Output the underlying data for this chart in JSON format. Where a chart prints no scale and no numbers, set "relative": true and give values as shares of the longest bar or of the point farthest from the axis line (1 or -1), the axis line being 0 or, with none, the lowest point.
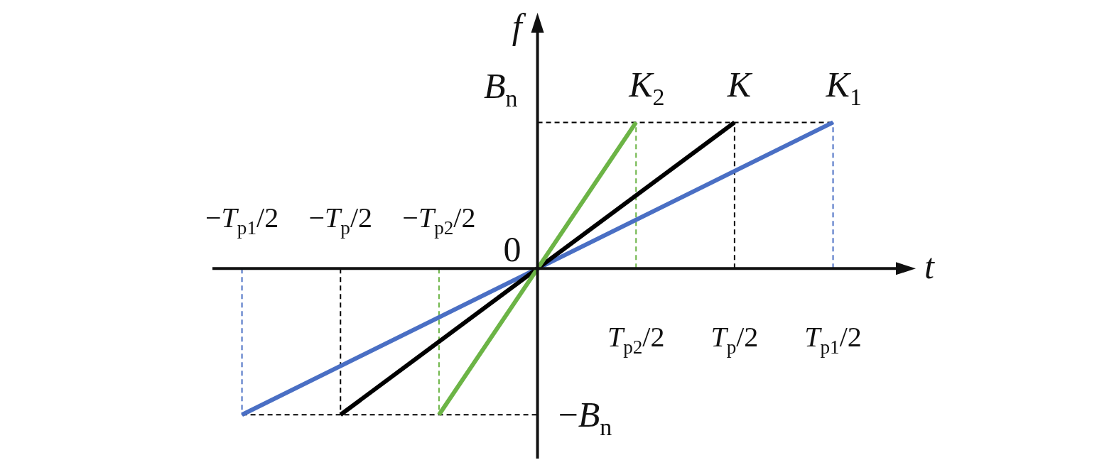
{
  "chart_data": {
    "type": "line",
    "relative": true,
    "xlabel": "t",
    "ylabel": "f",
    "categories": [
      "−T$_{p1}$/2",
      "−T$_{p}$/2",
      "−T$_{p2}$/2",
      "0",
      "T$_{p2}$/2",
      "T$_{p}$/2",
      "T$_{p1}$/2"
    ],
    "annotations": [
      "B$_{n}$",
      "−B$_{n}$"
    ],
    "series": [
      {
        "color": "#000000",
        "line_style": "dashed",
        "x": [
          "0",
          "T$_{p1}$/2"
        ],
        "values": [
          1,
          1
        ]
      },
      {
        "color": "#000000",
        "line_style": "dashed",
        "x": [
          "−T$_{p1}$/2",
          "0"
        ],
        "values": [
          -1,
          -1
        ]
      },
      {
        "color": "#4a6fc4",
        "line_style": "dashed",
        "x": [
          "T$_{p1}$/2",
          "T$_{p1}$/2"
        ],
        "values": [
          0,
          1
        ]
      },
      {
        "color": "#4a6fc4",
        "line_style": "dashed",
        "x": [
          "−T$_{p1}$/2",
          "−T$_{p1}$/2"
        ],
        "values": [
          0,
          -1
        ]
      },
      {
        "color": "#000000",
        "line_style": "dashed",
        "x": [
          "T$_{p}$/2",
          "T$_{p}$/2"
        ],
        "values": [
          0,
          1
        ]
      },
      {
        "color": "#000000",
        "line_style": "dashed",
        "x": [
          "−T$_{p}$/2",
          "−T$_{p}$/2"
        ],
        "values": [
          0,
          -1
        ]
      },
      {
        "color": "#6cb446",
        "line_style": "dashed",
        "x": [
          "T$_{p2}$/2",
          "T$_{p2}$/2"
        ],
        "values": [
          0,
          1
        ]
      },
      {
        "color": "#6cb446",
        "line_style": "dashed",
        "x": [
          "−T$_{p2}$/2",
          "−T$_{p2}$/2"
        ],
        "values": [
          0,
          -1
        ]
      },
      {
        "name": "K$_{1}$",
        "color": "#4a6fc4",
        "x": [
          "−T$_{p1}$/2",
          "T$_{p1}$/2"
        ],
        "values": [
          -1,
          1
        ]
      },
      {
        "name": "K",
        "color": "#000000",
        "x": [
          "−T$_{p}$/2",
          "T$_{p}$/2"
        ],
        "values": [
          -1,
          1
        ]
      },
      {
        "name": "K$_{2}$",
        "color": "#6cb446",
        "x": [
          "−T$_{p2}$/2",
          "T$_{p2}$/2"
        ],
        "values": [
          -1,
          1
        ]
      }
    ]
  }
}
